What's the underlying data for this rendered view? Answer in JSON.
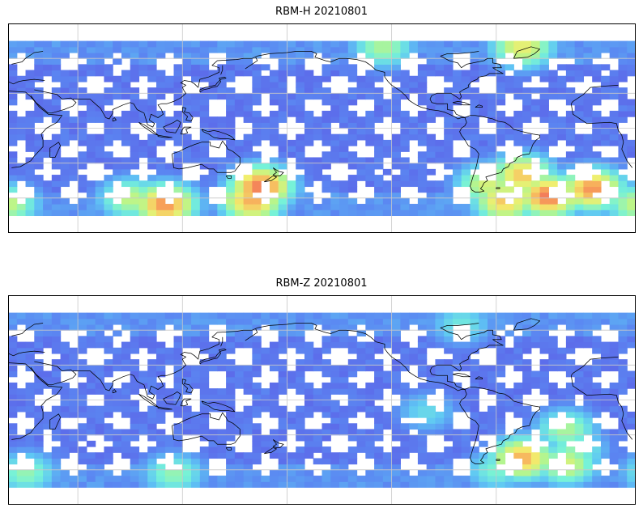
{
  "panels": [
    {
      "title": "RBM-H 20210801",
      "hotspots": [
        {
          "lon": 165,
          "lat": -50,
          "level": 0.95
        },
        {
          "lon": 160,
          "lat": -62,
          "level": 0.85
        },
        {
          "lon": 110,
          "lat": -65,
          "level": 0.9
        },
        {
          "lon": 90,
          "lat": -60,
          "level": 0.6
        },
        {
          "lon": 20,
          "lat": -65,
          "level": 0.6
        },
        {
          "lon": -45,
          "lat": 70,
          "level": 0.7
        },
        {
          "lon": -125,
          "lat": 70,
          "level": 0.55
        },
        {
          "lon": -5,
          "lat": -52,
          "level": 0.9
        },
        {
          "lon": -30,
          "lat": -58,
          "level": 0.95
        },
        {
          "lon": -45,
          "lat": -40,
          "level": 0.8
        },
        {
          "lon": -55,
          "lat": -62,
          "level": 0.8
        },
        {
          "lon": -65,
          "lat": -48,
          "level": 0.65
        }
      ]
    },
    {
      "title": "RBM-Z 20210801",
      "hotspots": [
        {
          "lon": 30,
          "lat": -62,
          "level": 0.5
        },
        {
          "lon": 115,
          "lat": -63,
          "level": 0.5
        },
        {
          "lon": -15,
          "lat": -42,
          "level": 0.5
        },
        {
          "lon": -20,
          "lat": -25,
          "level": 0.55
        },
        {
          "lon": -45,
          "lat": -50,
          "level": 0.85
        },
        {
          "lon": -20,
          "lat": -55,
          "level": 0.65
        },
        {
          "lon": -60,
          "lat": -60,
          "level": 0.45
        },
        {
          "lon": -100,
          "lat": -10,
          "level": 0.35
        },
        {
          "lon": -80,
          "lat": 65,
          "level": 0.4
        }
      ]
    }
  ],
  "map": {
    "lon_range": [
      20,
      380
    ],
    "lat_range": [
      -90,
      90
    ],
    "data_lat_range": [
      -75,
      75
    ],
    "gridline_lons": [
      60,
      120,
      180,
      240,
      300
    ],
    "gridline_lats": [
      -60,
      -30,
      0,
      30,
      60
    ],
    "colormap": [
      "#5d5de6",
      "#5b89f2",
      "#5fc6f4",
      "#76f2d8",
      "#b9f58a",
      "#f2ee6e",
      "#f8a85a",
      "#ef5a5a"
    ]
  }
}
